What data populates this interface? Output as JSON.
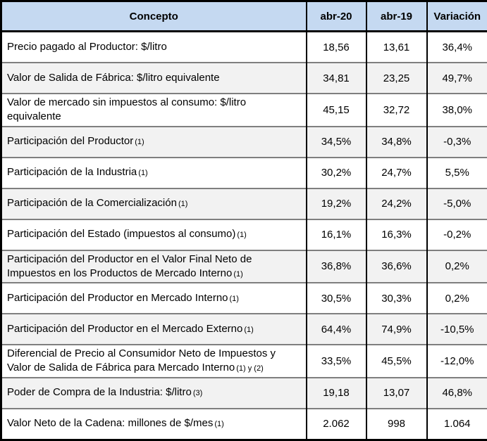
{
  "colors": {
    "header_bg": "#C5D9F1",
    "alt_row_bg": "#F2F2F2",
    "outer_border": "#000000",
    "row_divider": "#7f7f7f",
    "text": "#000000"
  },
  "chart_data": {
    "type": "table",
    "columns": [
      "Concepto",
      "abr-20",
      "abr-19",
      "Variación"
    ],
    "rows": [
      {
        "concepto": "Precio pagado al Productor: $/litro",
        "note": "",
        "abr20": "18,56",
        "abr19": "13,61",
        "variacion": "36,4%"
      },
      {
        "concepto": "Valor de Salida de Fábrica: $/litro equivalente",
        "note": "",
        "abr20": "34,81",
        "abr19": "23,25",
        "variacion": "49,7%"
      },
      {
        "concepto": "Valor de mercado sin impuestos al consumo: $/litro equivalente",
        "note": "",
        "abr20": "45,15",
        "abr19": "32,72",
        "variacion": "38,0%"
      },
      {
        "concepto": "Participación del Productor",
        "note": "(1)",
        "abr20": "34,5%",
        "abr19": "34,8%",
        "variacion": "-0,3%"
      },
      {
        "concepto": "Participación de la Industria",
        "note": "(1)",
        "abr20": "30,2%",
        "abr19": "24,7%",
        "variacion": "5,5%"
      },
      {
        "concepto": "Participación de la Comercialización",
        "note": "(1)",
        "abr20": "19,2%",
        "abr19": "24,2%",
        "variacion": "-5,0%"
      },
      {
        "concepto": "Participación del Estado (impuestos al consumo)",
        "note": "(1)",
        "abr20": "16,1%",
        "abr19": "16,3%",
        "variacion": "-0,2%"
      },
      {
        "concepto": "Participación del Productor en el Valor Final Neto de Impuestos en los Productos de Mercado Interno",
        "note": "(1)",
        "abr20": "36,8%",
        "abr19": "36,6%",
        "variacion": "0,2%"
      },
      {
        "concepto": "Participación del Productor en Mercado Interno",
        "note": "(1)",
        "abr20": "30,5%",
        "abr19": "30,3%",
        "variacion": "0,2%"
      },
      {
        "concepto": "Participación del Productor en el Mercado Externo",
        "note": "(1)",
        "abr20": "64,4%",
        "abr19": "74,9%",
        "variacion": "-10,5%"
      },
      {
        "concepto": "Diferencial de Precio al Consumidor Neto de Impuestos y Valor de Salida de Fábrica para Mercado Interno",
        "note": "(1) y (2)",
        "abr20": "33,5%",
        "abr19": "45,5%",
        "variacion": "-12,0%"
      },
      {
        "concepto": "Poder de Compra de la Industria: $/litro",
        "note": "(3)",
        "abr20": "19,18",
        "abr19": "13,07",
        "variacion": "46,8%"
      },
      {
        "concepto": "Valor Neto de la Cadena: millones de $/mes",
        "note": "(1)",
        "abr20": "2.062",
        "abr19": "998",
        "variacion": "1.064"
      }
    ]
  }
}
